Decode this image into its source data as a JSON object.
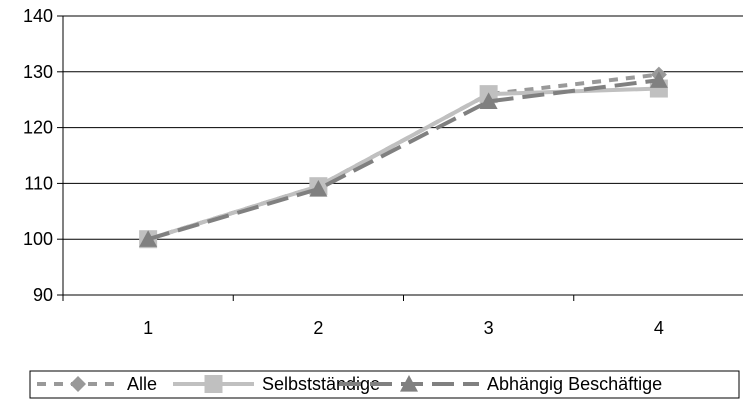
{
  "chart_data": {
    "type": "line",
    "categories": [
      "1",
      "2",
      "3",
      "4"
    ],
    "ylim": [
      90,
      140
    ],
    "yticks": [
      "90",
      "100",
      "110",
      "120",
      "130",
      "140"
    ],
    "grid": "horizontal",
    "legend_position": "bottom",
    "series": [
      {
        "name": "Alle",
        "values": [
          100,
          109.5,
          126,
          129.5
        ],
        "color": "#999999",
        "dash": "dashed",
        "marker": "diamond"
      },
      {
        "name": "Selbstständige",
        "values": [
          100,
          109.5,
          126,
          127
        ],
        "color": "#c0c0c0",
        "dash": "solid",
        "marker": "square"
      },
      {
        "name": "Abhängig Beschäftige",
        "values": [
          100,
          109,
          124.7,
          128.5
        ],
        "color": "#808080",
        "dash": "longdash",
        "marker": "triangle"
      }
    ]
  }
}
